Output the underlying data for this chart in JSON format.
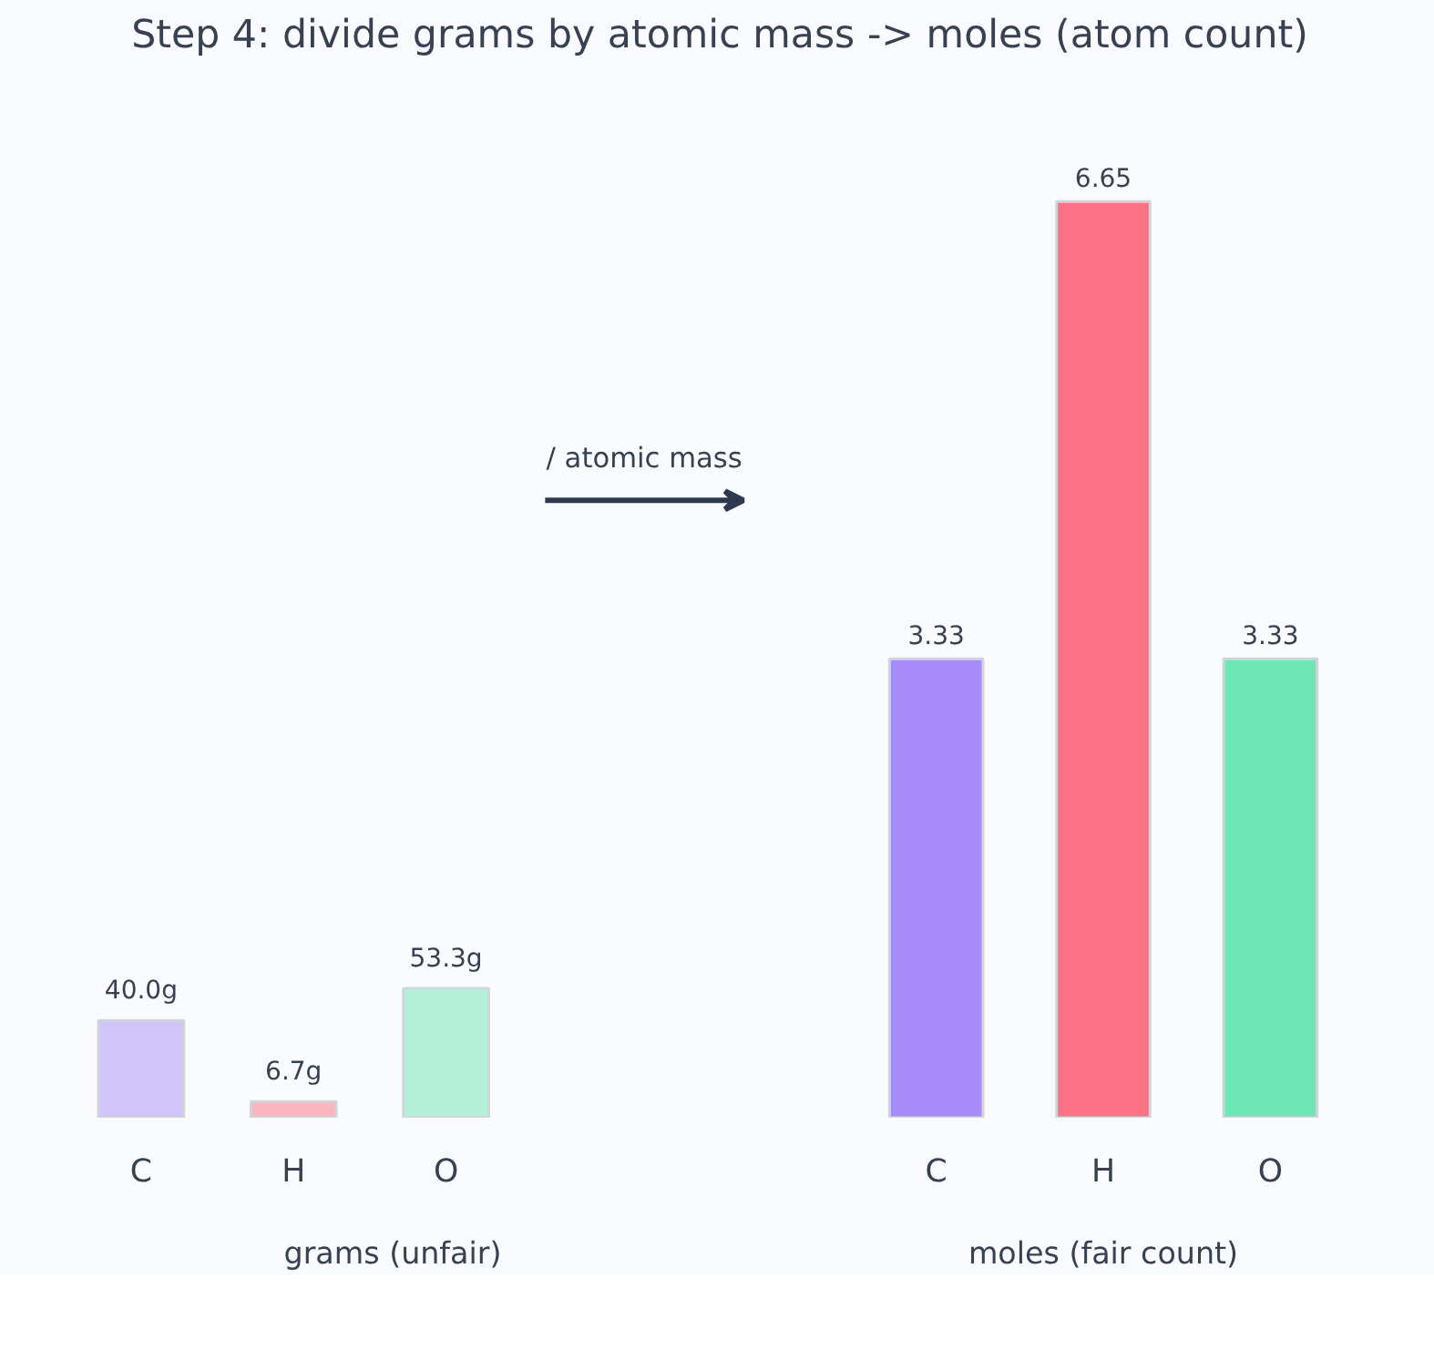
{
  "chart_data": [
    {
      "type": "bar",
      "title": "Step 4: divide grams by atomic mass -> moles (atom count)",
      "xlabel": "grams (unfair)",
      "categories": [
        "C",
        "H",
        "O"
      ],
      "values": [
        40.0,
        6.7,
        53.3
      ],
      "colors": [
        "#d0c4fb",
        "#fbb5bf",
        "#b3f0da"
      ],
      "value_labels": [
        "40.0g",
        "6.7g",
        "53.3g"
      ],
      "annotations": [
        "/ atomic mass"
      ]
    },
    {
      "type": "bar",
      "xlabel": "moles (fair count)",
      "categories": [
        "C",
        "H",
        "O"
      ],
      "values": [
        3.33,
        6.65,
        3.33
      ],
      "colors": [
        "#a78bfa",
        "#fb7185",
        "#6ee7b7"
      ],
      "data_labels": true
    }
  ]
}
